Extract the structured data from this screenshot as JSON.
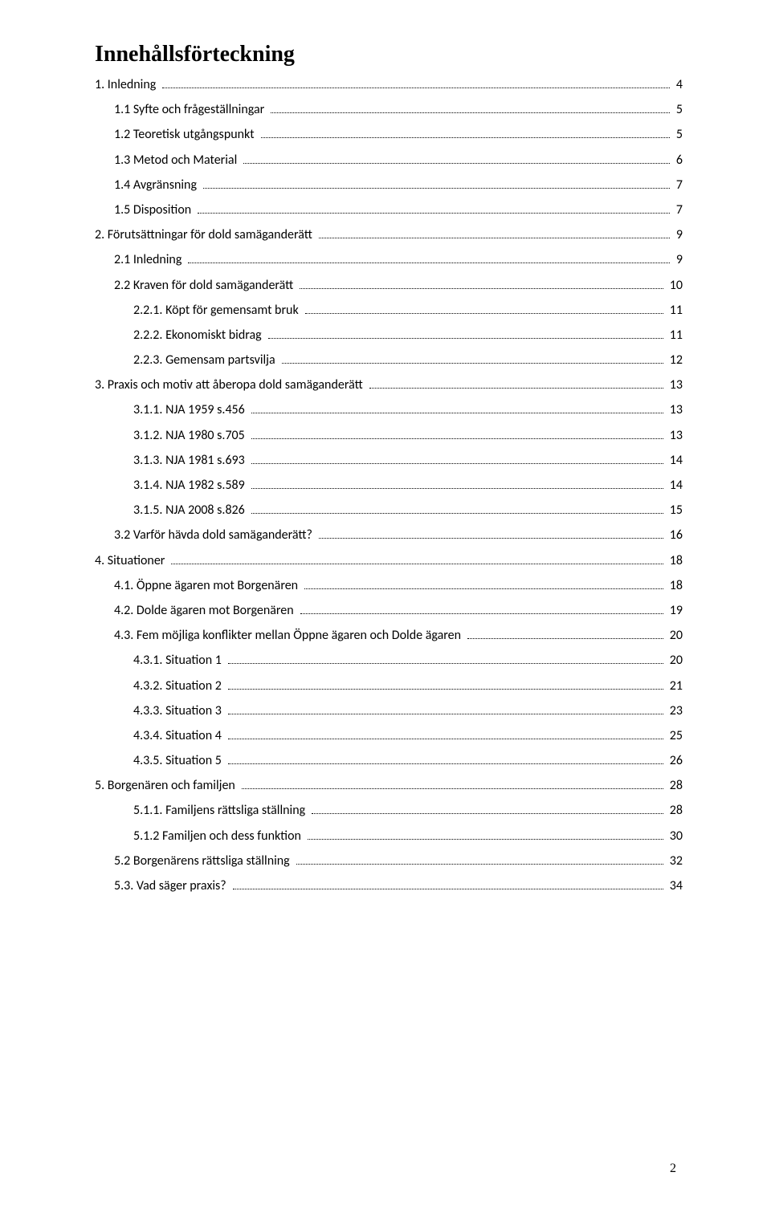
{
  "title": "Innehållsförteckning",
  "page_number": "2",
  "toc": [
    {
      "label": "1. Inledning",
      "page": "4",
      "indent": 0
    },
    {
      "label": "1.1 Syfte och frågeställningar",
      "page": "5",
      "indent": 1
    },
    {
      "label": "1.2 Teoretisk utgångspunkt",
      "page": "5",
      "indent": 1
    },
    {
      "label": "1.3 Metod och Material",
      "page": "6",
      "indent": 1
    },
    {
      "label": "1.4 Avgränsning",
      "page": "7",
      "indent": 1
    },
    {
      "label": "1.5 Disposition",
      "page": "7",
      "indent": 1
    },
    {
      "label": "2. Förutsättningar för dold samäganderätt",
      "page": "9",
      "indent": 0
    },
    {
      "label": "2.1 Inledning",
      "page": "9",
      "indent": 1
    },
    {
      "label": "2.2 Kraven för dold samäganderätt",
      "page": "10",
      "indent": 1
    },
    {
      "label": "2.2.1. Köpt för gemensamt bruk",
      "page": "11",
      "indent": 2
    },
    {
      "label": "2.2.2. Ekonomiskt bidrag",
      "page": "11",
      "indent": 2
    },
    {
      "label": "2.2.3. Gemensam partsvilja",
      "page": "12",
      "indent": 2
    },
    {
      "label": "3. Praxis och motiv att åberopa dold samäganderätt",
      "page": "13",
      "indent": 0
    },
    {
      "label": "3.1.1. NJA 1959 s.456",
      "page": "13",
      "indent": 2
    },
    {
      "label": "3.1.2. NJA 1980 s.705",
      "page": "13",
      "indent": 2
    },
    {
      "label": "3.1.3. NJA 1981 s.693",
      "page": "14",
      "indent": 2
    },
    {
      "label": "3.1.4. NJA 1982 s.589",
      "page": "14",
      "indent": 2
    },
    {
      "label": "3.1.5. NJA 2008 s.826",
      "page": "15",
      "indent": 2
    },
    {
      "label": "3.2 Varför hävda dold samäganderätt?",
      "page": "16",
      "indent": 1
    },
    {
      "label": "4. Situationer",
      "page": "18",
      "indent": 0
    },
    {
      "label": "4.1. Öppne ägaren mot Borgenären",
      "page": "18",
      "indent": 1
    },
    {
      "label": "4.2. Dolde ägaren mot Borgenären",
      "page": "19",
      "indent": 1
    },
    {
      "label": "4.3. Fem möjliga konflikter mellan Öppne ägaren och Dolde ägaren",
      "page": "20",
      "indent": 1
    },
    {
      "label": "4.3.1. Situation 1",
      "page": "20",
      "indent": 2
    },
    {
      "label": "4.3.2. Situation 2",
      "page": "21",
      "indent": 2
    },
    {
      "label": "4.3.3. Situation 3",
      "page": "23",
      "indent": 2
    },
    {
      "label": "4.3.4. Situation 4",
      "page": "25",
      "indent": 2
    },
    {
      "label": "4.3.5. Situation 5",
      "page": "26",
      "indent": 2
    },
    {
      "label": "5. Borgenären och familjen",
      "page": "28",
      "indent": 0
    },
    {
      "label": "5.1.1. Familjens rättsliga ställning",
      "page": "28",
      "indent": 2
    },
    {
      "label": "5.1.2 Familjen och dess funktion",
      "page": "30",
      "indent": 2
    },
    {
      "label": "5.2 Borgenärens rättsliga ställning",
      "page": "32",
      "indent": 1
    },
    {
      "label": "5.3. Vad säger praxis?",
      "page": "34",
      "indent": 1
    }
  ]
}
